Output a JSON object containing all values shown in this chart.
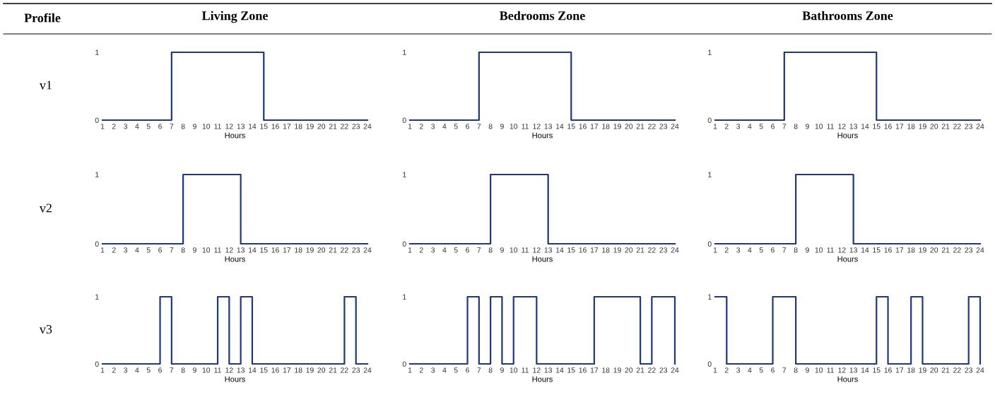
{
  "chart_data": [
    {
      "type": "step",
      "title": "Living Zone",
      "ylabel": "v1",
      "xlabel": "Hours",
      "annotations": [
        "Profile"
      ],
      "x": [
        1,
        2,
        3,
        4,
        5,
        6,
        7,
        8,
        9,
        10,
        11,
        12,
        13,
        14,
        15,
        16,
        17,
        18,
        19,
        20,
        21,
        22,
        23,
        24
      ],
      "series": [
        {
          "color": "#1f3a7a",
          "values": [
            0,
            0,
            0,
            0,
            0,
            0,
            1,
            1,
            1,
            1,
            1,
            1,
            1,
            1,
            0,
            0,
            0,
            0,
            0,
            0,
            0,
            0,
            0,
            0
          ]
        }
      ],
      "xlim": [
        1,
        24
      ],
      "ylim": [
        0,
        1
      ],
      "xticks": [
        1,
        2,
        3,
        4,
        5,
        6,
        7,
        8,
        9,
        10,
        11,
        12,
        13,
        14,
        15,
        16,
        17,
        18,
        19,
        20,
        21,
        22,
        23,
        24
      ],
      "yticks": [
        0,
        1
      ]
    },
    {
      "type": "step",
      "title": "Bedrooms Zone",
      "xlabel": "Hours",
      "x": [
        1,
        2,
        3,
        4,
        5,
        6,
        7,
        8,
        9,
        10,
        11,
        12,
        13,
        14,
        15,
        16,
        17,
        18,
        19,
        20,
        21,
        22,
        23,
        24
      ],
      "series": [
        {
          "color": "#1f3a7a",
          "values": [
            0,
            0,
            0,
            0,
            0,
            0,
            1,
            1,
            1,
            1,
            1,
            1,
            1,
            1,
            0,
            0,
            0,
            0,
            0,
            0,
            0,
            0,
            0,
            0
          ]
        }
      ],
      "xlim": [
        1,
        24
      ],
      "ylim": [
        0,
        1
      ],
      "xticks": [
        1,
        2,
        3,
        4,
        5,
        6,
        7,
        8,
        9,
        10,
        11,
        12,
        13,
        14,
        15,
        16,
        17,
        18,
        19,
        20,
        21,
        22,
        23,
        24
      ],
      "yticks": [
        0,
        1
      ]
    },
    {
      "type": "step",
      "title": "Bathrooms Zone",
      "xlabel": "Hours",
      "x": [
        1,
        2,
        3,
        4,
        5,
        6,
        7,
        8,
        9,
        10,
        11,
        12,
        13,
        14,
        15,
        16,
        17,
        18,
        19,
        20,
        21,
        22,
        23,
        24
      ],
      "series": [
        {
          "color": "#1f3a7a",
          "values": [
            0,
            0,
            0,
            0,
            0,
            0,
            1,
            1,
            1,
            1,
            1,
            1,
            1,
            1,
            0,
            0,
            0,
            0,
            0,
            0,
            0,
            0,
            0,
            0
          ]
        }
      ],
      "xlim": [
        1,
        24
      ],
      "ylim": [
        0,
        1
      ],
      "xticks": [
        1,
        2,
        3,
        4,
        5,
        6,
        7,
        8,
        9,
        10,
        11,
        12,
        13,
        14,
        15,
        16,
        17,
        18,
        19,
        20,
        21,
        22,
        23,
        24
      ],
      "yticks": [
        0,
        1
      ]
    },
    {
      "type": "step",
      "ylabel": "v2",
      "xlabel": "Hours",
      "x": [
        1,
        2,
        3,
        4,
        5,
        6,
        7,
        8,
        9,
        10,
        11,
        12,
        13,
        14,
        15,
        16,
        17,
        18,
        19,
        20,
        21,
        22,
        23,
        24
      ],
      "series": [
        {
          "color": "#1f3a7a",
          "values": [
            0,
            0,
            0,
            0,
            0,
            0,
            0,
            1,
            1,
            1,
            1,
            1,
            0,
            0,
            0,
            0,
            0,
            0,
            0,
            0,
            0,
            0,
            0,
            0
          ]
        }
      ],
      "xlim": [
        1,
        24
      ],
      "ylim": [
        0,
        1
      ],
      "xticks": [
        1,
        2,
        3,
        4,
        5,
        6,
        7,
        8,
        9,
        10,
        11,
        12,
        13,
        14,
        15,
        16,
        17,
        18,
        19,
        20,
        21,
        22,
        23,
        24
      ],
      "yticks": [
        0,
        1
      ]
    },
    {
      "type": "step",
      "xlabel": "Hours",
      "x": [
        1,
        2,
        3,
        4,
        5,
        6,
        7,
        8,
        9,
        10,
        11,
        12,
        13,
        14,
        15,
        16,
        17,
        18,
        19,
        20,
        21,
        22,
        23,
        24
      ],
      "series": [
        {
          "color": "#1f3a7a",
          "values": [
            0,
            0,
            0,
            0,
            0,
            0,
            0,
            1,
            1,
            1,
            1,
            1,
            0,
            0,
            0,
            0,
            0,
            0,
            0,
            0,
            0,
            0,
            0,
            0
          ]
        }
      ],
      "xlim": [
        1,
        24
      ],
      "ylim": [
        0,
        1
      ],
      "xticks": [
        1,
        2,
        3,
        4,
        5,
        6,
        7,
        8,
        9,
        10,
        11,
        12,
        13,
        14,
        15,
        16,
        17,
        18,
        19,
        20,
        21,
        22,
        23,
        24
      ],
      "yticks": [
        0,
        1
      ]
    },
    {
      "type": "step",
      "xlabel": "Hours",
      "x": [
        1,
        2,
        3,
        4,
        5,
        6,
        7,
        8,
        9,
        10,
        11,
        12,
        13,
        14,
        15,
        16,
        17,
        18,
        19,
        20,
        21,
        22,
        23,
        24
      ],
      "series": [
        {
          "color": "#1f3a7a",
          "values": [
            0,
            0,
            0,
            0,
            0,
            0,
            0,
            1,
            1,
            1,
            1,
            1,
            0,
            0,
            0,
            0,
            0,
            0,
            0,
            0,
            0,
            0,
            0,
            0
          ]
        }
      ],
      "xlim": [
        1,
        24
      ],
      "ylim": [
        0,
        1
      ],
      "xticks": [
        1,
        2,
        3,
        4,
        5,
        6,
        7,
        8,
        9,
        10,
        11,
        12,
        13,
        14,
        15,
        16,
        17,
        18,
        19,
        20,
        21,
        22,
        23,
        24
      ],
      "yticks": [
        0,
        1
      ]
    },
    {
      "type": "step",
      "ylabel": "v3",
      "xlabel": "Hours",
      "x": [
        1,
        2,
        3,
        4,
        5,
        6,
        7,
        8,
        9,
        10,
        11,
        12,
        13,
        14,
        15,
        16,
        17,
        18,
        19,
        20,
        21,
        22,
        23,
        24
      ],
      "series": [
        {
          "color": "#1f3a7a",
          "values": [
            0,
            0,
            0,
            0,
            0,
            1,
            0,
            0,
            0,
            0,
            1,
            0,
            1,
            0,
            0,
            0,
            0,
            0,
            0,
            0,
            0,
            1,
            0,
            0
          ]
        }
      ],
      "xlim": [
        1,
        24
      ],
      "ylim": [
        0,
        1
      ],
      "xticks": [
        1,
        2,
        3,
        4,
        5,
        6,
        7,
        8,
        9,
        10,
        11,
        12,
        13,
        14,
        15,
        16,
        17,
        18,
        19,
        20,
        21,
        22,
        23,
        24
      ],
      "yticks": [
        0,
        1
      ]
    },
    {
      "type": "step",
      "xlabel": "Hours",
      "x": [
        1,
        2,
        3,
        4,
        5,
        6,
        7,
        8,
        9,
        10,
        11,
        12,
        13,
        14,
        15,
        16,
        17,
        18,
        19,
        20,
        21,
        22,
        23,
        24
      ],
      "series": [
        {
          "color": "#1f3a7a",
          "values": [
            0,
            0,
            0,
            0,
            0,
            1,
            0,
            1,
            0,
            1,
            1,
            0,
            0,
            0,
            0,
            0,
            1,
            1,
            1,
            1,
            0,
            1,
            1,
            0
          ]
        }
      ],
      "xlim": [
        1,
        24
      ],
      "ylim": [
        0,
        1
      ],
      "xticks": [
        1,
        2,
        3,
        4,
        5,
        6,
        7,
        8,
        9,
        10,
        11,
        12,
        13,
        14,
        15,
        16,
        17,
        18,
        19,
        20,
        21,
        22,
        23,
        24
      ],
      "yticks": [
        0,
        1
      ]
    },
    {
      "type": "step",
      "xlabel": "Hours",
      "x": [
        1,
        2,
        3,
        4,
        5,
        6,
        7,
        8,
        9,
        10,
        11,
        12,
        13,
        14,
        15,
        16,
        17,
        18,
        19,
        20,
        21,
        22,
        23,
        24
      ],
      "series": [
        {
          "color": "#1f3a7a",
          "values": [
            1,
            0,
            0,
            0,
            0,
            1,
            1,
            0,
            0,
            0,
            0,
            0,
            0,
            0,
            1,
            0,
            0,
            1,
            0,
            0,
            0,
            0,
            1,
            0
          ]
        }
      ],
      "xlim": [
        1,
        24
      ],
      "ylim": [
        0,
        1
      ],
      "xticks": [
        1,
        2,
        3,
        4,
        5,
        6,
        7,
        8,
        9,
        10,
        11,
        12,
        13,
        14,
        15,
        16,
        17,
        18,
        19,
        20,
        21,
        22,
        23,
        24
      ],
      "yticks": [
        0,
        1
      ]
    }
  ]
}
